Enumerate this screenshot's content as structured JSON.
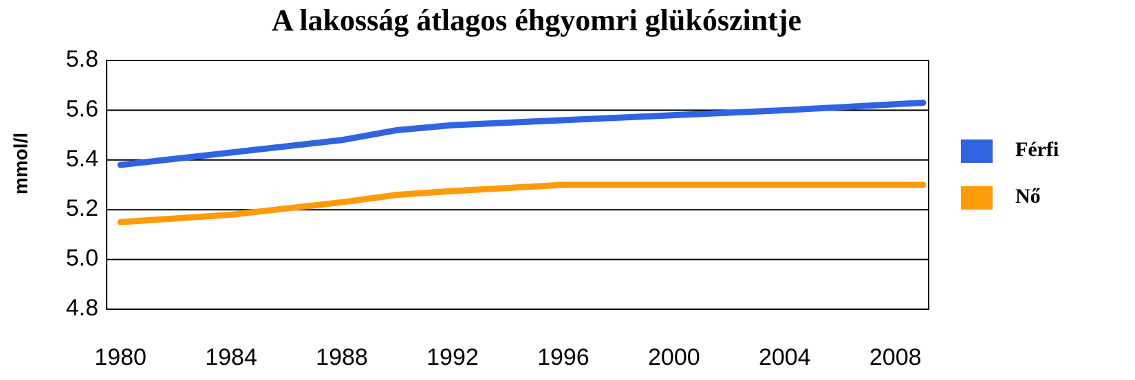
{
  "chart_data": {
    "type": "line",
    "title": "A lakosság átlagos éhgyomri glükószintje",
    "y_label": "mmol/l",
    "x": [
      1980,
      1984,
      1988,
      1990,
      1992,
      1996,
      2000,
      2004,
      2009
    ],
    "series": [
      {
        "name": "Férfi",
        "color": "#2f63e0",
        "values": [
          5.38,
          5.43,
          5.48,
          5.52,
          5.54,
          5.56,
          5.58,
          5.6,
          5.63
        ]
      },
      {
        "name": "Nő",
        "color": "#ff9a0a",
        "values": [
          5.15,
          5.18,
          5.23,
          5.26,
          5.275,
          5.3,
          5.3,
          5.3,
          5.3
        ]
      }
    ],
    "xlim": [
      1979.5,
      2009.2
    ],
    "xticks": [
      1980,
      1984,
      1988,
      1992,
      1996,
      2000,
      2004,
      2008
    ],
    "ylim": [
      4.8,
      5.8
    ],
    "yticks": [
      4.8,
      {
        "value": 5.0,
        "label": "5.0"
      },
      5.2,
      5.4,
      5.6,
      5.8
    ],
    "grid": true,
    "legend": "right"
  }
}
